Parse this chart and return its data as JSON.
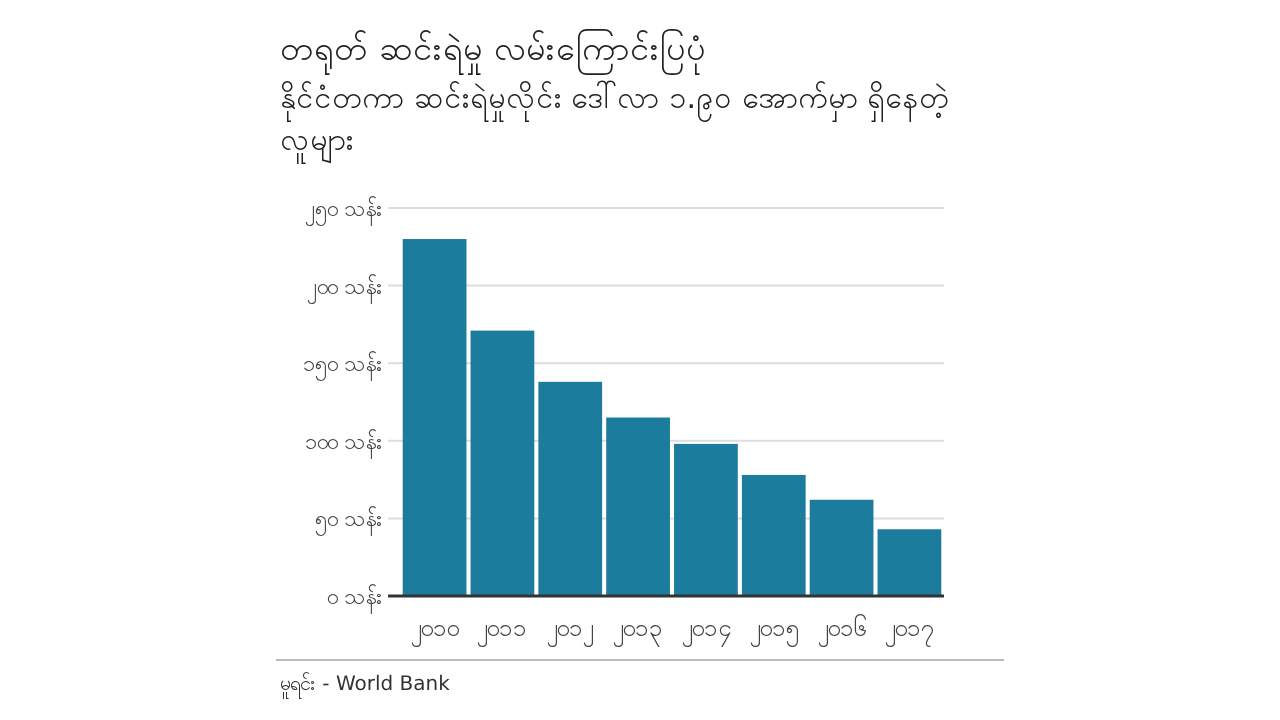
{
  "chart_data": {
    "type": "bar",
    "title": "တရုတ် ဆင်းရဲမှု လမ်းကြောင်းပြပုံ",
    "subtitle": "နိုင်ငံတကာ ဆင်းရဲမှုလိုင်း ဒေါ်လာ ၁.၉၀ အောက်မှာ ရှိနေတဲ့ လူများ",
    "categories": [
      "၂၀၁၀",
      "၂၀၁၁",
      "၂၀၁၂",
      "၂၀၁၃",
      "၂၀၁၄",
      "၂၀၁၅",
      "၂၀၁၆",
      "၂၀၁၇"
    ],
    "values": [
      230,
      171,
      138,
      115,
      98,
      78,
      62,
      43
    ],
    "color": "#1b7c9e",
    "ylim": [
      0,
      250
    ],
    "yticks": [
      {
        "value": 0,
        "label": "၀ သန်း"
      },
      {
        "value": 50,
        "label": "၅၀ သန်း"
      },
      {
        "value": 100,
        "label": "၁၀၀ သန်း"
      },
      {
        "value": 150,
        "label": "၁၅၀ သန်း"
      },
      {
        "value": 200,
        "label": "၂၀၀ သန်း"
      },
      {
        "value": 250,
        "label": "၂၅၀ သန်း"
      }
    ],
    "grid": "y",
    "annotations": [
      "မူရင်း - World Bank"
    ]
  }
}
